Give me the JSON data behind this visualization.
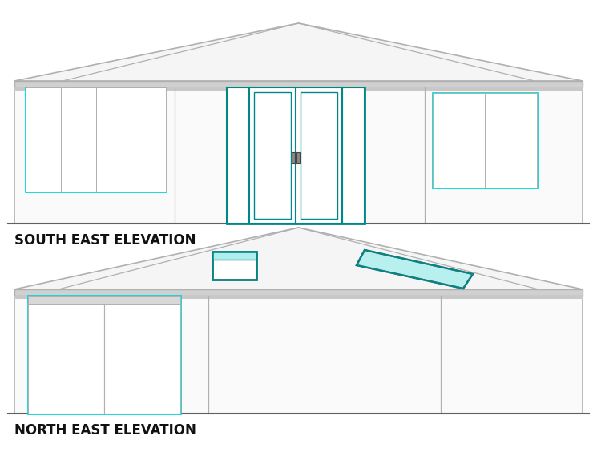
{
  "bg_color": "#ffffff",
  "line_color": "#b0b0b0",
  "dark_line": "#606060",
  "cyan_color": "#00d8d8",
  "dark_teal": "#008888",
  "roof_fill": "#f5f5f5",
  "wall_fill": "#fafafa",
  "eave_fill": "#d0d0d0",
  "title_color": "#111111",
  "se_title": "SOUTH EAST ELEVATION",
  "ne_title": "NORTH EAST ELEVATION"
}
